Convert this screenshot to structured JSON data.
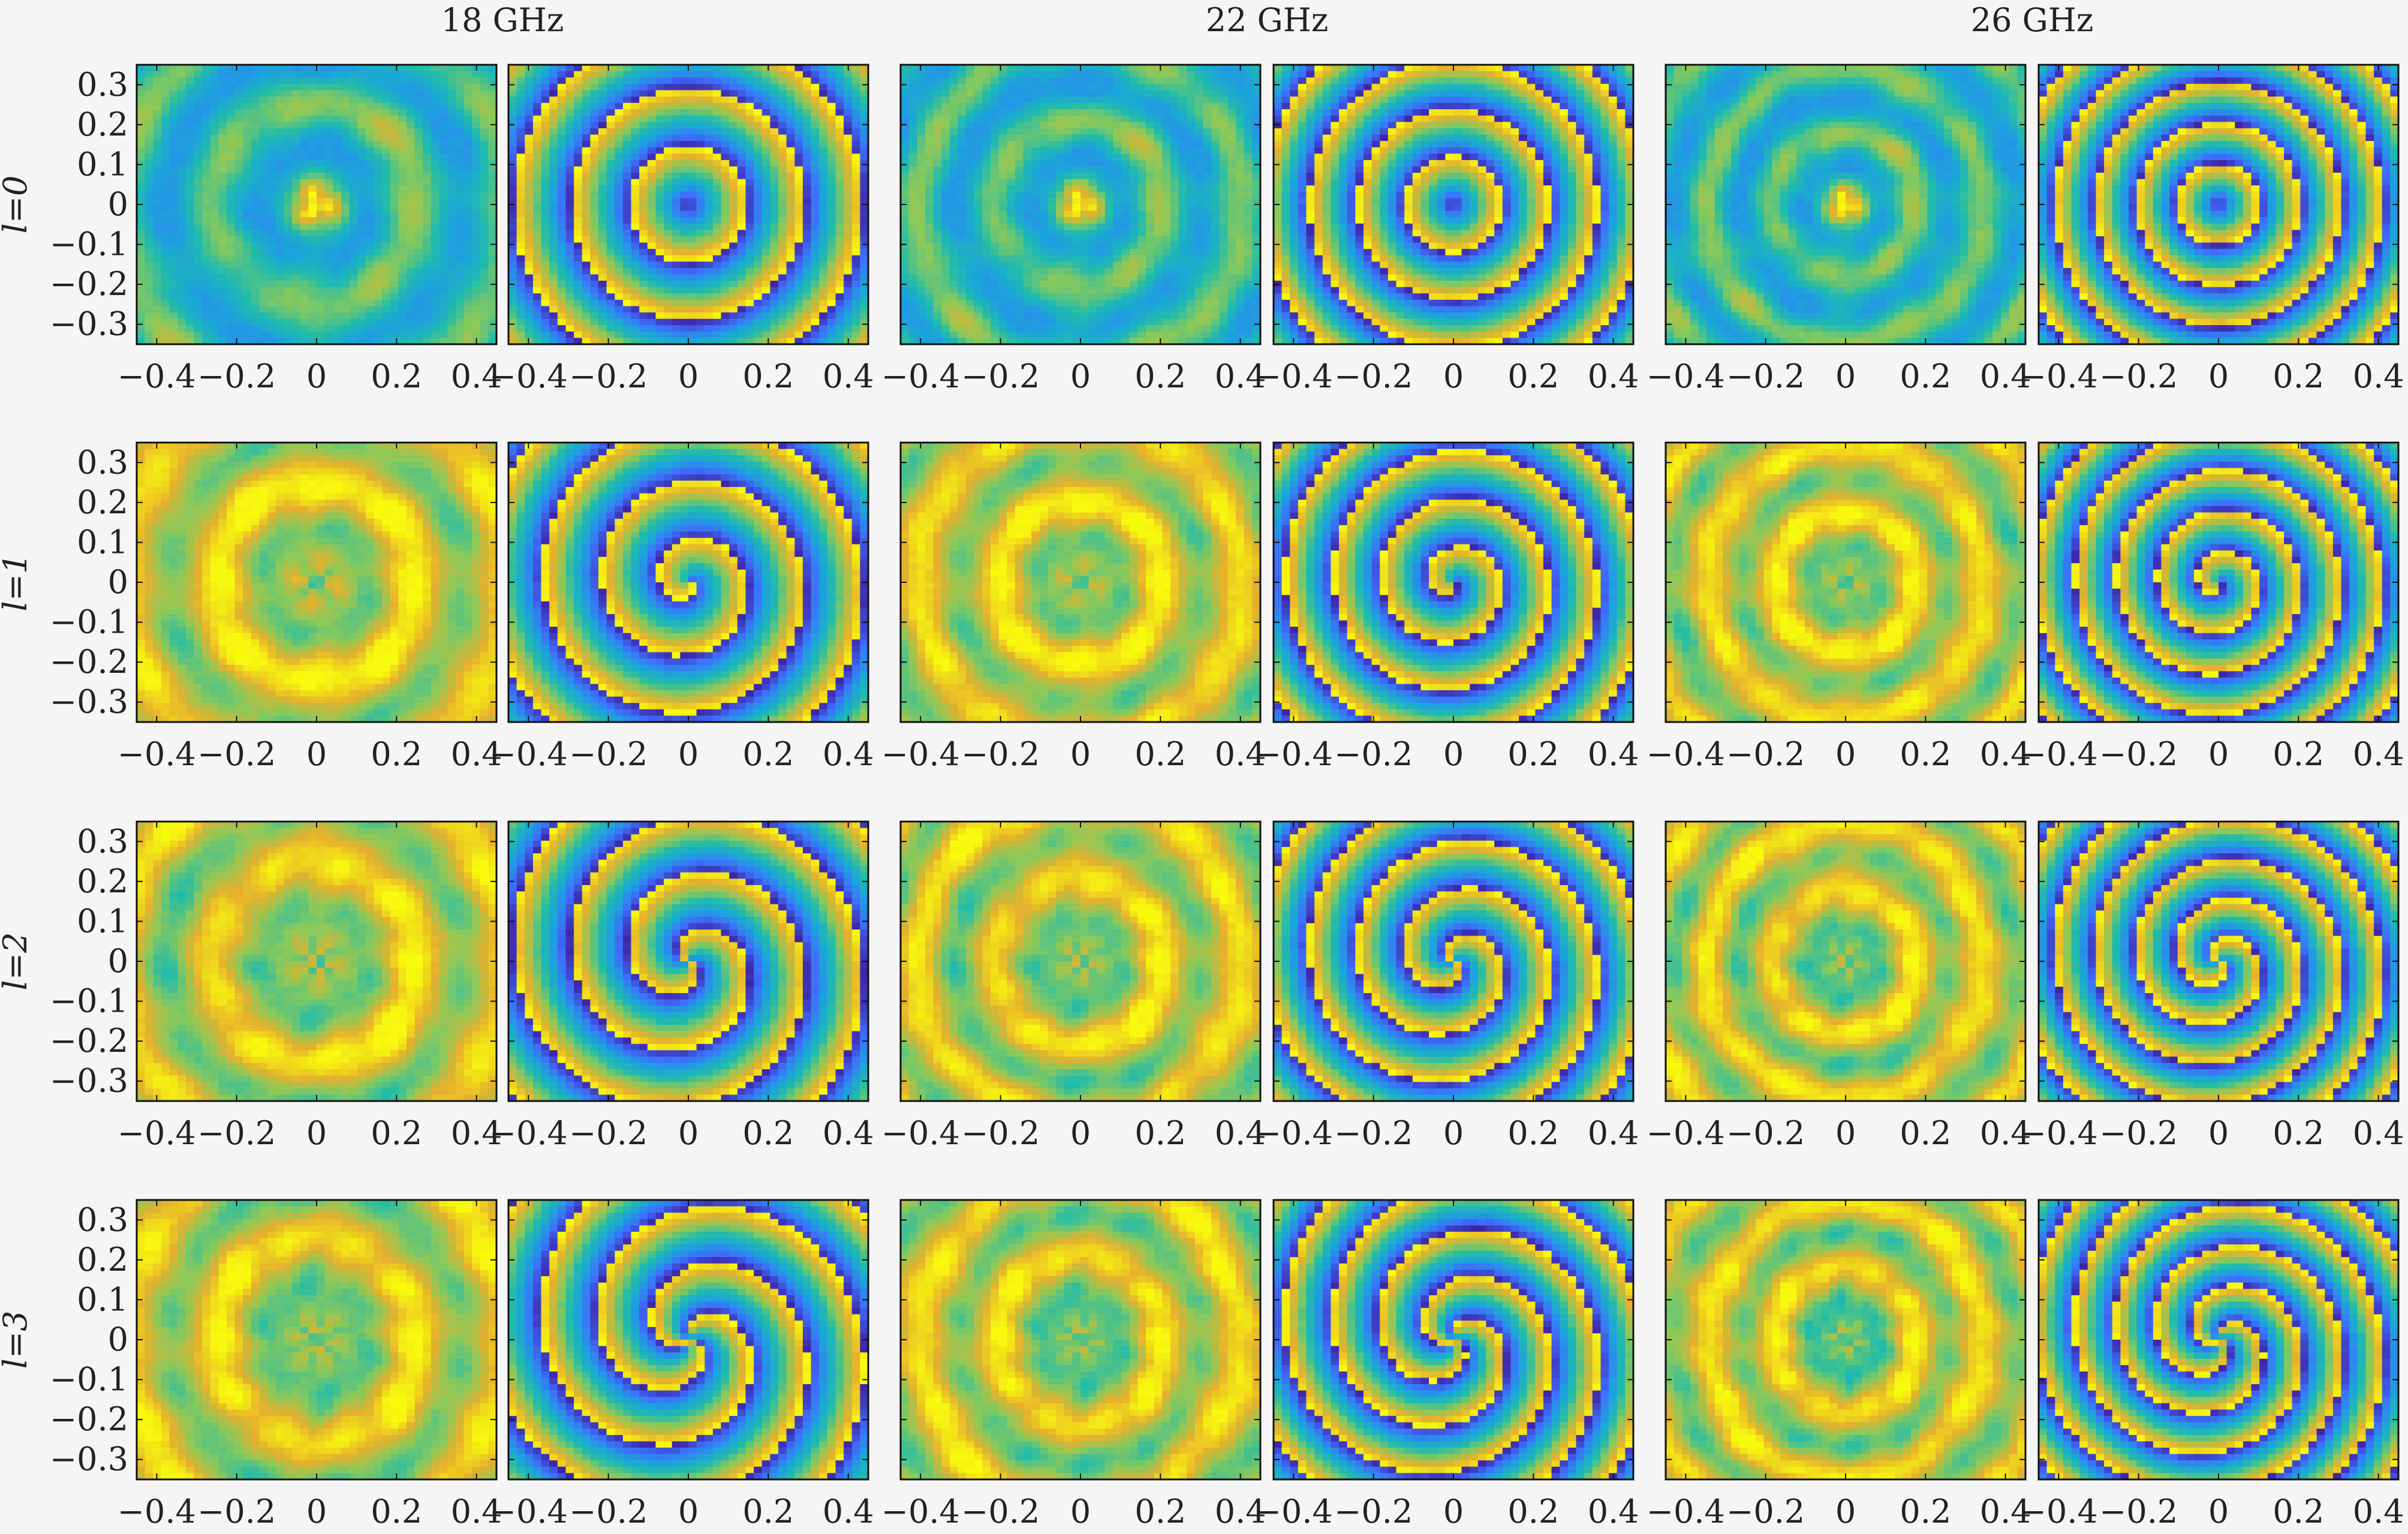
{
  "figure": {
    "column_titles": [
      "18 GHz",
      "22 GHz",
      "26 GHz"
    ],
    "row_labels": [
      "l=0",
      "l=1",
      "l=2",
      "l=3"
    ],
    "x_ticks": [
      "−0.4",
      "−0.2",
      "0",
      "0.2",
      "0.4"
    ],
    "y_ticks": [
      "0.3",
      "0.2",
      "0.1",
      "0",
      "−0.1",
      "−0.2",
      "−0.3"
    ]
  },
  "colors": {
    "background": "#f5f5f5",
    "colormap": [
      "#3e26a8",
      "#3e6ffe",
      "#1ca4db",
      "#21bcaa",
      "#8bc95a",
      "#e6b02d",
      "#f8fa0d"
    ]
  },
  "chart_data": {
    "type": "heatmap",
    "layout": "4 rows x 6 columns of image panels (amplitude, phase pairs per frequency)",
    "x_range": [
      -0.45,
      0.45
    ],
    "y_range": [
      -0.35,
      0.35
    ],
    "x_ticks": [
      -0.4,
      -0.2,
      0,
      0.2,
      0.4
    ],
    "y_ticks": [
      0.3,
      0.2,
      0.1,
      0,
      -0.1,
      -0.2,
      -0.3
    ],
    "frequencies_ghz": [
      18,
      22,
      26
    ],
    "modes_l": [
      0,
      1,
      2,
      3
    ],
    "panel_kinds": [
      "amplitude",
      "phase"
    ],
    "colormap": "parula",
    "grid": false,
    "legend": "none"
  }
}
